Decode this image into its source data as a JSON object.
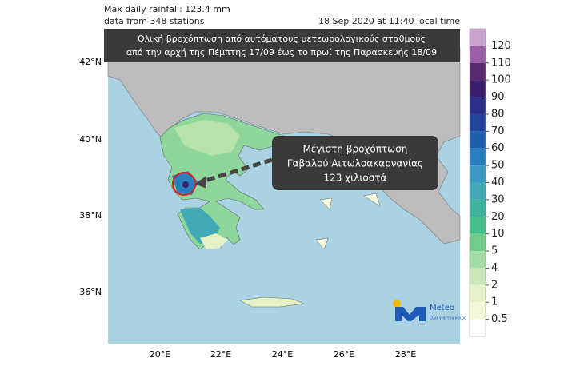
{
  "header": {
    "max_rainfall": "Max daily rainfall: 123.4 mm",
    "stations": "data from 348 stations",
    "timestamp": "18 Sep 2020 at 11:40 local time"
  },
  "title": [
    "Ολική βροχόπτωση από αυτόματους μετεωρολογικούς σταθμούς",
    "από την αρχή της Πέμπτης 17/09 έως το πρωί της Παρασκευής 18/09"
  ],
  "callout": [
    "Μέγιστη βροχόπτωση",
    "Γαβαλού Αιτωλοακαρνανίας",
    "123 χιλιοστά"
  ],
  "lat_labels": [
    "42°N",
    "40°N",
    "38°N",
    "36°N"
  ],
  "lon_labels": [
    "20°E",
    "22°E",
    "24°E",
    "26°E",
    "28°E"
  ],
  "colorbar": {
    "levels": [
      120,
      110,
      100,
      90,
      80,
      70,
      60,
      50,
      40,
      30,
      20,
      10,
      5,
      4,
      2,
      1,
      0.5
    ],
    "colors": [
      "#c9a3cc",
      "#9a5fa6",
      "#5a2a6e",
      "#3b1f6b",
      "#2b2f86",
      "#23449e",
      "#1f5fae",
      "#2a7fbf",
      "#3b9ac4",
      "#3fa9b6",
      "#3db3a0",
      "#45bf8c",
      "#6fcc8a",
      "#a3dca0",
      "#cbe9b8",
      "#e6f2c6",
      "#f5f7da",
      "#ffffff"
    ]
  },
  "logo": {
    "name": "Meteo",
    "tagline": "Όλα για τον καιρό"
  }
}
